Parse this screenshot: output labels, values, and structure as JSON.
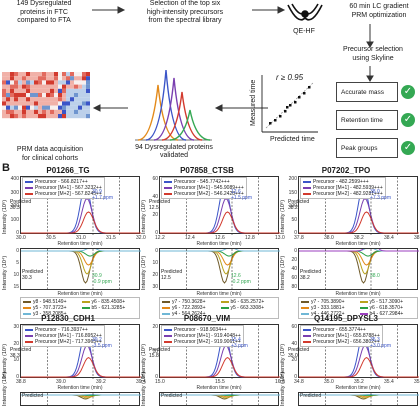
{
  "panel_a": {
    "step1": "149 Dysregulated\nproteins in FTC\ncompared to FTA",
    "step2": "Selection of the top six\nhigh-intensity precursors\nfrom the spectral library",
    "instrument": "QE-HF",
    "step3": "60 min LC gradient\nPRM optimization",
    "step4": "Precursor selection\nusing Skyline",
    "r_label": "r ≥ 0.95",
    "measured": "Measured time",
    "predicted": "Predicted time",
    "checks": [
      "Accurate mass",
      "Retention time",
      "Peak groups"
    ],
    "proteins_validated": "94 Dysregulated proteins\nvalidated",
    "prm_text": "PRM data acquisition\nfor clinical cohorts",
    "colors": {
      "green": "#34a853",
      "blue": "#3b55c8",
      "red": "#d23a2e",
      "orange": "#e38a1a"
    }
  },
  "panel_b": {
    "label": "B",
    "xlabel": "Retention time (min)",
    "ylabel_prec": "Intensity (10⁶)",
    "ylabel_frag": "Intensity (10⁴)",
    "row1": [
      {
        "title": "P01266_TG",
        "legend": [
          "Precursor - 566.8217++",
          "Precursor [M+1] - 567.3232++",
          "Precursor [M+2] - 567.8245++"
        ],
        "yticks": [
          "400",
          "300",
          "200",
          "100",
          "0"
        ],
        "xticks": [
          "30.0",
          "30.5",
          "31.0",
          "31.5",
          "32.0"
        ],
        "predicted": "Predicted\n30.3",
        "peak": "30.9\n+1.7 ppm",
        "frag_yticks": [
          "0",
          "5",
          "10",
          "15"
        ],
        "frag_peak": "30.9\n-0.9 ppm",
        "frag_predicted": "Predicted\n30.3",
        "frag_legend": [
          "y8 - 948.5149+",
          "y6 - 835.4508+",
          "y5 - 707.3723+",
          "b5 - 621.3285+",
          "y3 - 358.2085+"
        ]
      },
      {
        "title": "P07858_CTSB",
        "legend": [
          "Precursor - 545.7742+++",
          "Precursor [M+1] - 545.9089+++",
          "Precursor [M+2] - 546.2428+++"
        ],
        "yticks": [
          "60",
          "40",
          "20",
          "0"
        ],
        "xticks": [
          "12.2",
          "12.4",
          "12.6",
          "12.8",
          "13.0"
        ],
        "predicted": "Predicted\n12.5",
        "peak": "12.6\n+1.5 ppm",
        "frag_yticks": [
          "0",
          "10",
          "20",
          "30"
        ],
        "frag_peak": "12.6\n-0.2 ppm",
        "frag_predicted": "Predicted\n12.5",
        "frag_legend": [
          "y7 - 750.3628+",
          "b6 - 635.2572+",
          "y6 - 722.2893+",
          "y5 - 663.3308+",
          "y4 - 564.2624+"
        ]
      },
      {
        "title": "P07202_TPO",
        "legend": [
          "Precursor - 482.2599+++",
          "Precursor [M+1] - 482.5939+++",
          "Precursor [M+2] - 482.9281+++"
        ],
        "yticks": [
          "200",
          "150",
          "100",
          "50",
          "0"
        ],
        "xticks": [
          "37.8",
          "38.0",
          "38.2",
          "38.4",
          "38.6"
        ],
        "predicted": "Predicted\n38.2",
        "peak": "38.0\n+7.3 ppm",
        "frag_yticks": [
          "0",
          "20",
          "40",
          "60",
          "80"
        ],
        "frag_peak": "38.0",
        "frag_predicted": "Predicted\n38.2",
        "frag_legend": [
          "y7 - 705.3890+",
          "y5 - 517.3090+",
          "y3 - 333.1881+",
          "y6 - 618.3570+",
          "y4 - 446.2722+",
          "b4 - 627.2984+"
        ]
      }
    ],
    "row2": [
      {
        "title": "P12830_CDH1",
        "legend": [
          "Precursor - 716.3937++",
          "Precursor [M+1] - 716.8952++",
          "Precursor [M+2] - 717.3965++"
        ],
        "yticks": [
          "30",
          "20",
          "10",
          "0"
        ],
        "xticks": [
          "38.8",
          "39.0",
          "39.2",
          "39.4"
        ],
        "predicted": "Predicted\n38.3",
        "peak": "39.2\n-3.5 ppm",
        "frag_predicted": "Predicted"
      },
      {
        "title": "P08670_VIM",
        "legend": [
          "Precursor - 918.9034++",
          "Precursor [M+1] - 919.4048++",
          "Precursor [M+2] - 919.9061++"
        ],
        "yticks": [
          "20",
          "10",
          "0"
        ],
        "xticks": [
          "15.0",
          "15.5",
          "16.0"
        ],
        "predicted": "Predicted\n15.8",
        "peak": "15.4\n+3 ppm",
        "frag_predicted": "Predicted"
      },
      {
        "title": "Q14195_DPYSL3",
        "legend": [
          "Precursor - 655.3774++",
          "Precursor [M+1] - 655.8788++",
          "Precursor [M+2] - 656.3802++"
        ],
        "yticks": [
          "60",
          "40",
          "20",
          "0"
        ],
        "xticks": [
          "34.8",
          "35.0",
          "35.2",
          "35.4",
          "35.6"
        ],
        "predicted": "Predicted\n35.0",
        "peak": "35.3\n+3.0 ppm",
        "frag_predicted": "Predicted"
      }
    ]
  }
}
